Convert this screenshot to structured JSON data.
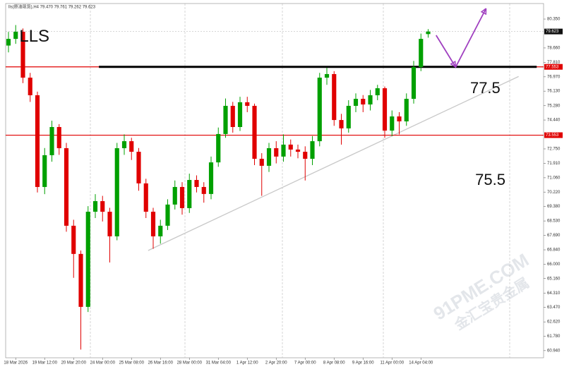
{
  "chart_data": {
    "type": "candlestick",
    "header": "lls(原油现货),H4 79.470 79.761 79.262 79.623",
    "annotations": [
      {
        "text": "LLS",
        "x": 1.5,
        "y": 79.3
      },
      {
        "text": "77.5",
        "x": 63.8,
        "y": 76.25
      },
      {
        "text": "75.5",
        "x": 64.5,
        "y": 70.88
      }
    ],
    "watermark": [
      "91PME.COM",
      "金汇宝贵金属"
    ],
    "up_color": "#00a000",
    "down_color": "#e00000",
    "xlim": [
      -0.39,
      73.95
    ],
    "ylim": [
      60.52,
      81.26
    ],
    "yticks": [
      {
        "value": 80.35,
        "label": "80.350"
      },
      {
        "value": 78.66,
        "label": "78.660"
      },
      {
        "value": 77.81,
        "label": "77.810"
      },
      {
        "value": 76.97,
        "label": "76.970"
      },
      {
        "value": 76.13,
        "label": "76.130"
      },
      {
        "value": 75.28,
        "label": "75.280"
      },
      {
        "value": 74.44,
        "label": "74.440"
      },
      {
        "value": 72.75,
        "label": "72.750"
      },
      {
        "value": 71.91,
        "label": "71.910"
      },
      {
        "value": 71.06,
        "label": "71.060"
      },
      {
        "value": 70.22,
        "label": "70.220"
      },
      {
        "value": 69.38,
        "label": "69.380"
      },
      {
        "value": 68.53,
        "label": "68.530"
      },
      {
        "value": 67.69,
        "label": "67.690"
      },
      {
        "value": 66.84,
        "label": "66.840"
      },
      {
        "value": 66.0,
        "label": "66.000"
      },
      {
        "value": 65.16,
        "label": "65.160"
      },
      {
        "value": 64.31,
        "label": "64.310"
      },
      {
        "value": 63.47,
        "label": "63.470"
      },
      {
        "value": 62.62,
        "label": "62.620"
      },
      {
        "value": 61.78,
        "label": "61.780"
      },
      {
        "value": 60.94,
        "label": "60.940"
      }
    ],
    "categories": [
      null,
      "18 Mar 2026",
      null,
      null,
      null,
      "19 Mar 12:00",
      null,
      null,
      null,
      "20 Mar 20:00",
      null,
      null,
      null,
      "24 Mar 00:00",
      null,
      null,
      null,
      "25 Mar 08:00",
      null,
      null,
      null,
      "26 Mar 16:00",
      null,
      null,
      null,
      "28 Mar 00:00",
      null,
      null,
      null,
      "31 Mar 04:00",
      null,
      null,
      null,
      "1 Apr 12:00",
      null,
      null,
      null,
      "2 Apr 20:00",
      null,
      null,
      null,
      "7 Apr 00:00",
      null,
      null,
      null,
      "8 Apr 08:00",
      null,
      null,
      null,
      "9 Apr 16:00",
      null,
      null,
      null,
      "11 Apr 00:00",
      null,
      null,
      null,
      "14 Apr 04:00",
      null
    ],
    "candles": [
      [
        78.8,
        79.6,
        78.4,
        79.19
      ],
      [
        79.19,
        80.0,
        78.9,
        79.61
      ],
      [
        79.61,
        79.8,
        76.6,
        76.92
      ],
      [
        76.92,
        77.2,
        75.5,
        75.89
      ],
      [
        75.89,
        76.1,
        70.2,
        70.52
      ],
      [
        70.52,
        72.8,
        70.1,
        72.38
      ],
      [
        72.38,
        74.4,
        72.0,
        74.03
      ],
      [
        74.03,
        74.2,
        72.4,
        72.79
      ],
      [
        72.79,
        73.1,
        67.9,
        68.25
      ],
      [
        68.25,
        68.6,
        65.2,
        66.6
      ],
      [
        66.6,
        66.8,
        61.0,
        63.5
      ],
      [
        63.5,
        69.4,
        63.2,
        69.07
      ],
      [
        69.07,
        70.1,
        68.7,
        69.69
      ],
      [
        69.69,
        70.0,
        68.5,
        69.07
      ],
      [
        69.07,
        69.3,
        66.1,
        67.63
      ],
      [
        67.63,
        73.1,
        67.4,
        72.79
      ],
      [
        72.79,
        73.6,
        72.4,
        73.2
      ],
      [
        73.2,
        73.4,
        72.1,
        72.58
      ],
      [
        72.58,
        72.8,
        70.3,
        70.73
      ],
      [
        70.73,
        71.0,
        68.7,
        69.07
      ],
      [
        69.07,
        69.3,
        66.9,
        67.63
      ],
      [
        67.63,
        68.6,
        67.2,
        68.25
      ],
      [
        68.25,
        69.8,
        68.0,
        69.49
      ],
      [
        69.49,
        70.9,
        69.2,
        70.52
      ],
      [
        70.52,
        70.8,
        68.9,
        69.28
      ],
      [
        69.28,
        71.3,
        69.0,
        70.93
      ],
      [
        70.93,
        71.2,
        70.2,
        70.52
      ],
      [
        70.52,
        70.8,
        69.6,
        70.11
      ],
      [
        70.11,
        72.3,
        69.8,
        71.96
      ],
      [
        71.96,
        74.0,
        71.7,
        73.62
      ],
      [
        73.62,
        75.7,
        73.4,
        75.27
      ],
      [
        75.27,
        75.5,
        73.7,
        74.03
      ],
      [
        74.03,
        75.8,
        73.8,
        75.48
      ],
      [
        75.48,
        75.8,
        74.9,
        75.27
      ],
      [
        75.27,
        75.4,
        71.8,
        72.17
      ],
      [
        72.17,
        72.5,
        70.0,
        71.76
      ],
      [
        71.76,
        73.1,
        71.4,
        72.79
      ],
      [
        72.79,
        73.2,
        71.9,
        72.3
      ],
      [
        72.3,
        73.6,
        72.0,
        73.0
      ],
      [
        73.0,
        73.3,
        72.3,
        72.71
      ],
      [
        72.71,
        73.0,
        72.2,
        72.58
      ],
      [
        72.58,
        72.9,
        70.9,
        72.17
      ],
      [
        72.17,
        73.5,
        71.8,
        73.2
      ],
      [
        73.2,
        77.2,
        72.9,
        76.92
      ],
      [
        76.92,
        77.5,
        76.5,
        77.13
      ],
      [
        77.13,
        77.3,
        74.1,
        74.44
      ],
      [
        74.44,
        74.8,
        73.0,
        73.95
      ],
      [
        73.95,
        75.6,
        73.7,
        75.27
      ],
      [
        75.27,
        76.0,
        74.9,
        75.68
      ],
      [
        75.68,
        75.9,
        74.9,
        75.35
      ],
      [
        75.35,
        76.2,
        75.0,
        75.89
      ],
      [
        75.89,
        76.5,
        75.6,
        76.3
      ],
      [
        76.3,
        76.4,
        73.4,
        73.82
      ],
      [
        73.82,
        75.0,
        73.5,
        74.65
      ],
      [
        74.65,
        74.9,
        73.6,
        74.36
      ],
      [
        74.36,
        76.0,
        74.1,
        75.68
      ],
      [
        75.68,
        77.9,
        75.4,
        77.54
      ],
      [
        77.54,
        79.5,
        77.3,
        79.19
      ],
      [
        79.47,
        79.761,
        79.262,
        79.623
      ]
    ],
    "price_lines": [
      {
        "value": 77.553,
        "color": "#e00000"
      },
      {
        "value": 73.553,
        "color": "#e00000"
      }
    ],
    "last_price": 79.623,
    "level_line": {
      "x": [
        12.5,
        73
      ],
      "y": 77.553,
      "color": "#000000"
    },
    "trendline": {
      "x": [
        19.3,
        70.5
      ],
      "y": [
        66.8,
        76.99
      ],
      "color": "#c8c8c8"
    },
    "arrow": {
      "x": [
        59.1,
        61.8,
        66
      ],
      "y": [
        79.4,
        77.54,
        80.97
      ],
      "color": "#a040c0"
    }
  }
}
